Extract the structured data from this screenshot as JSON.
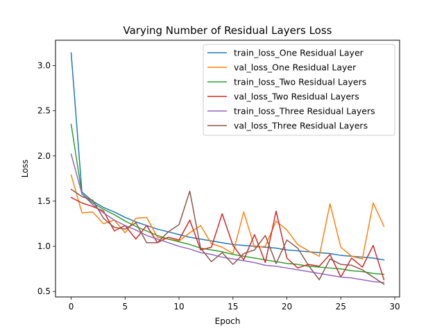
{
  "chart_data": {
    "type": "line",
    "title": "Varying Number of Residual Layers Loss",
    "xlabel": "Epoch",
    "ylabel": "Loss",
    "xlim": [
      -1.45,
      30.45
    ],
    "ylim": [
      0.44,
      3.28
    ],
    "xticks": [
      0,
      5,
      10,
      15,
      20,
      25,
      30
    ],
    "yticks": [
      0.5,
      1.0,
      1.5,
      2.0,
      2.5,
      3.0
    ],
    "xtick_labels": [
      "0",
      "5",
      "10",
      "15",
      "20",
      "25",
      "30"
    ],
    "ytick_labels": [
      "0.5",
      "1.0",
      "1.5",
      "2.0",
      "2.5",
      "3.0"
    ],
    "grid": false,
    "legend_position": "top-right",
    "x": [
      0,
      1,
      2,
      3,
      4,
      5,
      6,
      7,
      8,
      9,
      10,
      11,
      12,
      13,
      14,
      15,
      16,
      17,
      18,
      19,
      20,
      21,
      22,
      23,
      24,
      25,
      26,
      27,
      28,
      29
    ],
    "series": [
      {
        "name": "train_loss_One Residual Layer",
        "color": "#1f77b4",
        "values": [
          3.14,
          1.6,
          1.5,
          1.43,
          1.38,
          1.32,
          1.27,
          1.23,
          1.19,
          1.16,
          1.13,
          1.1,
          1.08,
          1.06,
          1.04,
          1.02,
          1.01,
          1.0,
          0.99,
          0.98,
          0.96,
          0.95,
          0.94,
          0.93,
          0.92,
          0.9,
          0.89,
          0.88,
          0.87,
          0.85
        ]
      },
      {
        "name": "val_loss_One Residual Layer",
        "color": "#ff7f0e",
        "values": [
          1.79,
          1.37,
          1.38,
          1.25,
          1.29,
          1.15,
          1.31,
          1.32,
          1.1,
          1.08,
          1.06,
          1.15,
          1.23,
          1.03,
          0.99,
          0.92,
          1.38,
          0.99,
          1.0,
          1.28,
          1.18,
          1.02,
          0.95,
          0.89,
          1.47,
          0.99,
          0.89,
          0.86,
          1.48,
          1.22
        ]
      },
      {
        "name": "train_loss_Two Residual Layers",
        "color": "#2ca02c",
        "values": [
          2.35,
          1.58,
          1.48,
          1.41,
          1.35,
          1.28,
          1.22,
          1.17,
          1.12,
          1.08,
          1.05,
          1.02,
          0.98,
          0.96,
          0.94,
          0.91,
          0.89,
          0.87,
          0.85,
          0.83,
          0.81,
          0.8,
          0.78,
          0.77,
          0.76,
          0.75,
          0.73,
          0.72,
          0.7,
          0.69
        ]
      },
      {
        "name": "val_loss_Two Residual Layers",
        "color": "#d62728",
        "values": [
          1.54,
          1.48,
          1.44,
          1.39,
          1.17,
          1.23,
          1.08,
          1.23,
          1.04,
          1.1,
          1.07,
          1.29,
          0.96,
          0.99,
          1.36,
          1.01,
          0.85,
          1.13,
          0.82,
          1.39,
          0.87,
          0.76,
          0.8,
          0.78,
          0.91,
          0.66,
          0.87,
          0.77,
          1.01,
          0.63
        ]
      },
      {
        "name": "train_loss_Three Residual Layers",
        "color": "#9467bd",
        "values": [
          2.02,
          1.58,
          1.46,
          1.37,
          1.29,
          1.23,
          1.18,
          1.12,
          1.08,
          1.04,
          1.0,
          0.97,
          0.93,
          0.91,
          0.88,
          0.86,
          0.84,
          0.82,
          0.79,
          0.78,
          0.76,
          0.74,
          0.72,
          0.7,
          0.68,
          0.66,
          0.65,
          0.63,
          0.61,
          0.6
        ]
      },
      {
        "name": "val_loss_Three Residual Layers",
        "color": "#8c564b",
        "values": [
          1.63,
          1.55,
          1.51,
          1.31,
          1.21,
          1.19,
          1.26,
          1.04,
          1.04,
          1.16,
          1.24,
          1.61,
          0.98,
          0.83,
          0.93,
          0.8,
          0.92,
          0.96,
          1.12,
          0.81,
          1.07,
          0.98,
          0.79,
          0.63,
          0.86,
          0.8,
          0.79,
          0.74,
          0.66,
          0.58
        ]
      }
    ]
  }
}
